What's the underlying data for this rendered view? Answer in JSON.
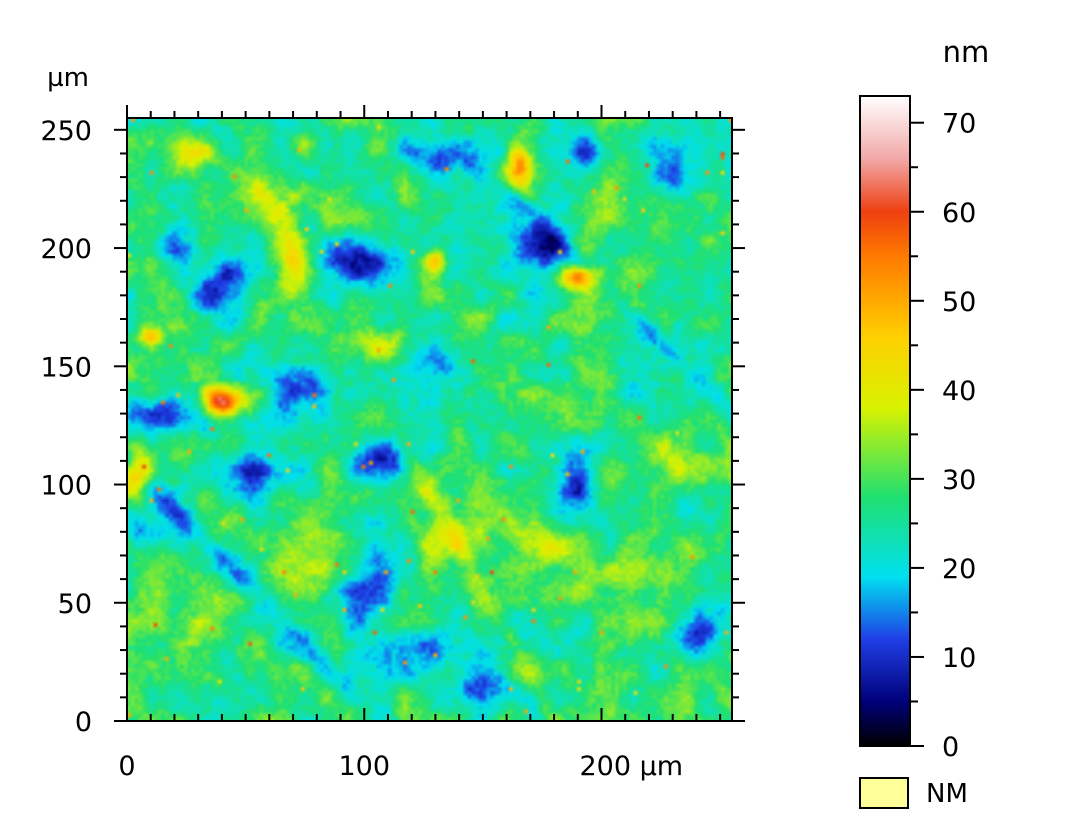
{
  "chart_data": {
    "type": "heatmap",
    "title": "",
    "x_unit": "µm",
    "y_unit": "µm",
    "xlim": [
      0,
      255
    ],
    "ylim": [
      0,
      255
    ],
    "x_ticks": [
      {
        "value": 0,
        "label": "0"
      },
      {
        "value": 100,
        "label": "100"
      },
      {
        "value": 200,
        "label": "200 µm"
      }
    ],
    "y_ticks": [
      {
        "value": 0,
        "label": "0"
      },
      {
        "value": 50,
        "label": "50"
      },
      {
        "value": 100,
        "label": "100"
      },
      {
        "value": 150,
        "label": "150"
      },
      {
        "value": 200,
        "label": "200"
      },
      {
        "value": 250,
        "label": "250"
      }
    ],
    "colorbar": {
      "unit": "nm",
      "range": [
        0,
        73
      ],
      "ticks": [
        {
          "value": 0,
          "label": "0"
        },
        {
          "value": 10,
          "label": "10"
        },
        {
          "value": 20,
          "label": "20"
        },
        {
          "value": 30,
          "label": "30"
        },
        {
          "value": 40,
          "label": "40"
        },
        {
          "value": 50,
          "label": "50"
        },
        {
          "value": 60,
          "label": "60"
        },
        {
          "value": 70,
          "label": "70"
        }
      ],
      "stops": [
        {
          "value": 0,
          "color": "#000000"
        },
        {
          "value": 5,
          "color": "#00007a"
        },
        {
          "value": 12,
          "color": "#1f3fe6"
        },
        {
          "value": 19,
          "color": "#00e0f0"
        },
        {
          "value": 28,
          "color": "#20e070"
        },
        {
          "value": 38,
          "color": "#d8f200"
        },
        {
          "value": 46,
          "color": "#ffcf00"
        },
        {
          "value": 55,
          "color": "#ff7a00"
        },
        {
          "value": 60,
          "color": "#ee4010"
        },
        {
          "value": 66,
          "color": "#f2a8a8"
        },
        {
          "value": 73,
          "color": "#ffffff"
        }
      ]
    },
    "base_height": 27,
    "features": [
      {
        "x": 40,
        "y": 183,
        "rx": 12,
        "ry": 12,
        "h": -18
      },
      {
        "x": 75,
        "y": 140,
        "rx": 14,
        "ry": 10,
        "h": -16
      },
      {
        "x": 15,
        "y": 130,
        "rx": 14,
        "ry": 8,
        "h": -17
      },
      {
        "x": 55,
        "y": 105,
        "rx": 22,
        "ry": 8,
        "h": -14
      },
      {
        "x": 110,
        "y": 110,
        "rx": 15,
        "ry": 9,
        "h": -18
      },
      {
        "x": 100,
        "y": 195,
        "rx": 18,
        "ry": 10,
        "h": -19
      },
      {
        "x": 135,
        "y": 240,
        "rx": 18,
        "ry": 8,
        "h": -17
      },
      {
        "x": 175,
        "y": 200,
        "rx": 12,
        "ry": 18,
        "h": -18
      },
      {
        "x": 195,
        "y": 240,
        "rx": 10,
        "ry": 8,
        "h": -15
      },
      {
        "x": 230,
        "y": 230,
        "rx": 10,
        "ry": 10,
        "h": -17
      },
      {
        "x": 190,
        "y": 100,
        "rx": 10,
        "ry": 16,
        "h": -18
      },
      {
        "x": 150,
        "y": 15,
        "rx": 12,
        "ry": 8,
        "h": -17
      },
      {
        "x": 100,
        "y": 60,
        "rx": 12,
        "ry": 20,
        "h": -14
      },
      {
        "x": 130,
        "y": 30,
        "rx": 25,
        "ry": 10,
        "h": -10
      },
      {
        "x": 240,
        "y": 35,
        "rx": 10,
        "ry": 10,
        "h": -16
      },
      {
        "x": 10,
        "y": 80,
        "rx": 10,
        "ry": 8,
        "h": -12
      },
      {
        "x": 20,
        "y": 200,
        "rx": 10,
        "ry": 10,
        "h": -10
      },
      {
        "x": 130,
        "y": 155,
        "rx": 12,
        "ry": 8,
        "h": -12
      },
      {
        "x": 215,
        "y": 160,
        "rx": 18,
        "ry": 10,
        "h": -9
      },
      {
        "x": 40,
        "y": 135,
        "rx": 8,
        "ry": 6,
        "h": 42
      },
      {
        "x": 36,
        "y": 140,
        "rx": 5,
        "ry": 4,
        "h": 6
      },
      {
        "x": 190,
        "y": 188,
        "rx": 9,
        "ry": 5,
        "h": 30
      },
      {
        "x": 5,
        "y": 105,
        "rx": 7,
        "ry": 8,
        "h": 27
      },
      {
        "x": 165,
        "y": 235,
        "rx": 5,
        "ry": 10,
        "h": 24
      },
      {
        "x": 70,
        "y": 195,
        "rx": 6,
        "ry": 12,
        "h": 17
      },
      {
        "x": 130,
        "y": 195,
        "rx": 5,
        "ry": 5,
        "h": 18
      },
      {
        "x": 30,
        "y": 240,
        "rx": 8,
        "ry": 6,
        "h": 14
      },
      {
        "x": 10,
        "y": 163,
        "rx": 4,
        "ry": 4,
        "h": 22
      },
      {
        "x": 80,
        "y": 75,
        "rx": 20,
        "ry": 14,
        "h": 9
      },
      {
        "x": 175,
        "y": 75,
        "rx": 15,
        "ry": 10,
        "h": 9
      },
      {
        "x": 135,
        "y": 80,
        "rx": 12,
        "ry": 10,
        "h": 10
      },
      {
        "x": 230,
        "y": 110,
        "rx": 15,
        "ry": 12,
        "h": 8
      },
      {
        "x": 60,
        "y": 220,
        "rx": 15,
        "ry": 12,
        "h": 9
      },
      {
        "x": 210,
        "y": 60,
        "rx": 15,
        "ry": 12,
        "h": 8
      },
      {
        "x": 30,
        "y": 40,
        "rx": 20,
        "ry": 15,
        "h": 7
      },
      {
        "x": 110,
        "y": 160,
        "rx": 14,
        "ry": 10,
        "h": 8
      }
    ],
    "ridges": [
      {
        "x1": 0,
        "y1": 110,
        "x2": 95,
        "y2": 10,
        "w": 5,
        "h": -10
      },
      {
        "x1": 165,
        "y1": 220,
        "x2": 255,
        "y2": 130,
        "w": 4,
        "h": -7
      },
      {
        "x1": 120,
        "y1": 110,
        "x2": 180,
        "y2": 0,
        "w": 4,
        "h": 7
      }
    ]
  },
  "legend": {
    "label": "NM",
    "swatch_color": "#ffff99"
  }
}
